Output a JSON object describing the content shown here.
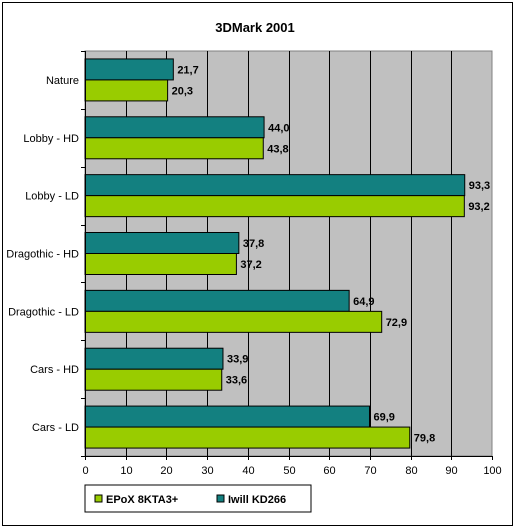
{
  "chart_data": {
    "type": "bar",
    "orientation": "horizontal",
    "title": "3DMark 2001",
    "categories": [
      "Nature",
      "Lobby - HD",
      "Lobby - LD",
      "Dragothic - HD",
      "Dragothic - LD",
      "Cars - HD",
      "Cars - LD"
    ],
    "series": [
      {
        "name": "Iwill KD266",
        "color": "#138080",
        "values": [
          21.7,
          44.0,
          93.3,
          37.8,
          64.9,
          33.9,
          69.9
        ],
        "labels": [
          "21,7",
          "44,0",
          "93,3",
          "37,8",
          "64,9",
          "33,9",
          "69,9"
        ]
      },
      {
        "name": "EPoX 8KTA3+",
        "color": "#99cc00",
        "values": [
          20.3,
          43.8,
          93.2,
          37.2,
          72.9,
          33.6,
          79.8
        ],
        "labels": [
          "20,3",
          "43,8",
          "93,2",
          "37,2",
          "72,9",
          "33,6",
          "79,8"
        ]
      }
    ],
    "xlim": [
      0,
      100
    ],
    "xticks": [
      0,
      10,
      20,
      30,
      40,
      50,
      60,
      70,
      80,
      90,
      100
    ],
    "grid": true,
    "plot_background": "#c0c0c0",
    "legend": {
      "placement": "bottom",
      "order": [
        "EPoX 8KTA3+",
        "Iwill KD266"
      ]
    }
  }
}
